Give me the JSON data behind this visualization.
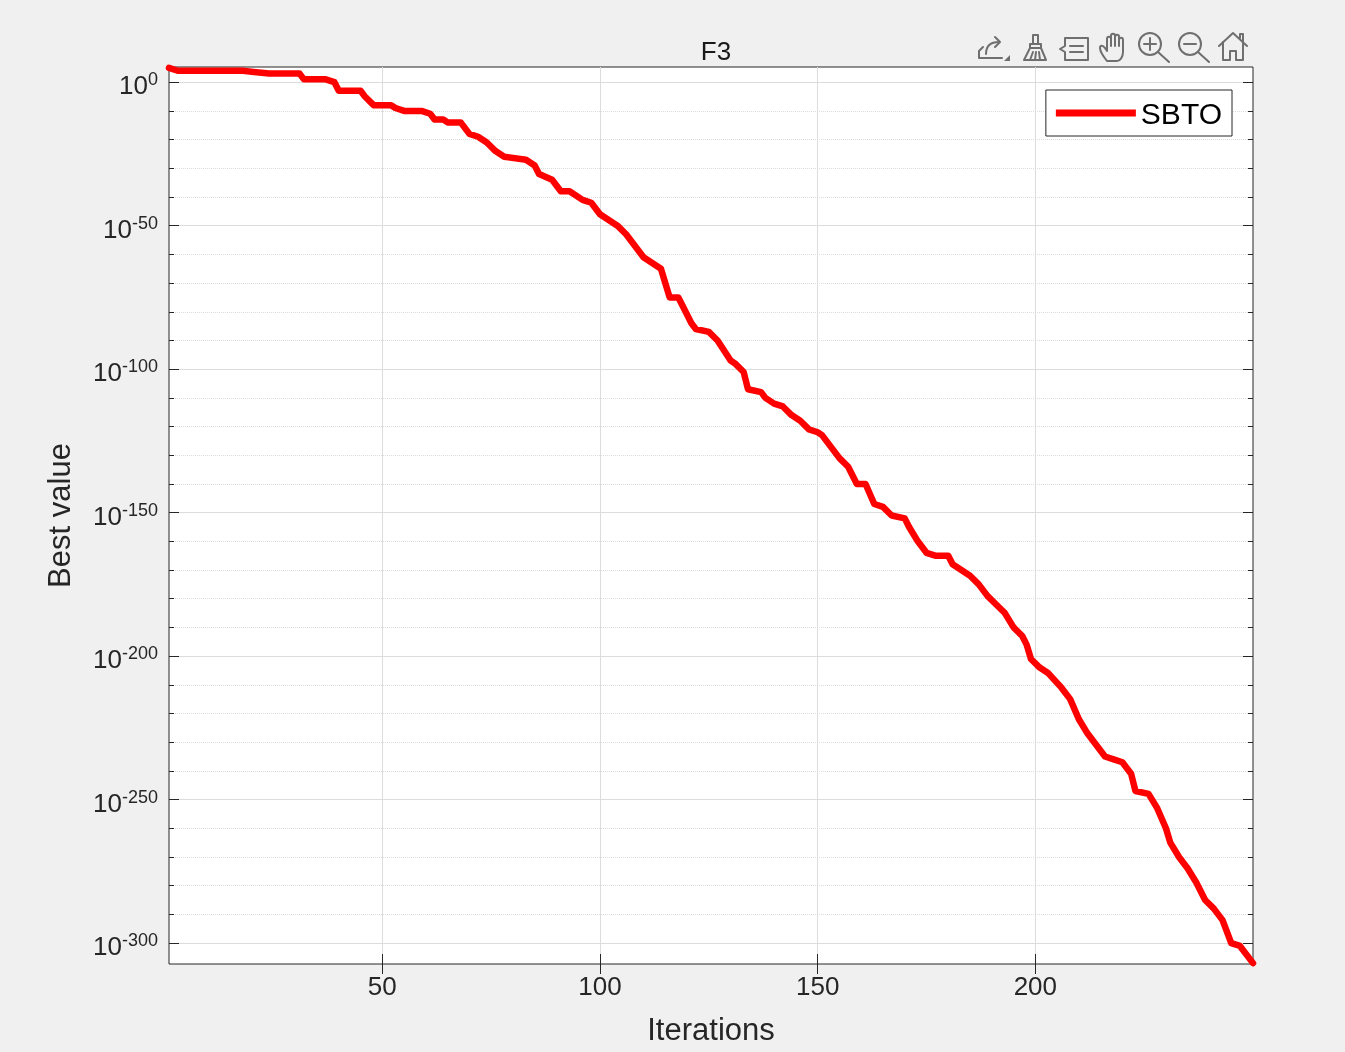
{
  "chart_data": {
    "type": "line",
    "title": "F3",
    "xlabel": "Iterations",
    "ylabel": "Best value",
    "x": [
      1,
      3,
      18,
      24,
      31,
      32,
      37,
      39,
      40,
      45,
      46,
      48,
      52,
      53,
      55,
      59,
      61,
      62,
      64,
      65,
      68,
      70,
      72,
      74,
      76,
      78,
      83,
      85,
      86,
      89,
      91,
      93,
      96,
      98,
      100,
      102,
      104,
      106,
      108,
      110,
      112,
      114,
      116,
      118,
      119,
      120,
      121,
      122,
      125,
      127,
      130,
      131,
      133,
      134,
      137,
      138,
      140,
      142,
      144,
      146,
      148,
      150,
      151,
      153,
      155,
      157,
      159,
      161,
      163,
      165,
      167,
      170,
      171,
      173,
      175,
      177,
      180,
      181,
      183,
      185,
      187,
      189,
      191,
      193,
      195,
      197,
      198,
      199,
      201,
      203,
      206,
      208,
      210,
      212,
      214,
      216,
      218,
      220,
      222,
      223,
      226,
      228,
      230,
      231,
      233,
      235,
      237,
      239,
      241,
      243,
      245,
      247,
      250
    ],
    "series": [
      {
        "name": "SBTO",
        "color": "#ff0000",
        "values": [
          100000.0,
          10000.0,
          10000.0,
          1000.0,
          1000.0,
          10.0,
          10.0,
          1.0,
          0.001,
          0.001,
          1e-05,
          1e-08,
          1e-08,
          1e-09,
          1e-10,
          1e-10,
          1e-11,
          1e-13,
          1e-13,
          1e-14,
          1e-14,
          1e-18,
          1e-19,
          1e-21,
          1e-24,
          1e-26,
          1e-27,
          1e-29,
          1e-32,
          1e-34,
          1e-38,
          1e-38,
          1e-41,
          1e-42,
          1e-46,
          1e-48,
          1e-50,
          1e-53,
          1e-57,
          1e-61,
          1e-63,
          1e-65,
          1e-75,
          1e-75,
          1e-78,
          1e-81,
          1e-84,
          1e-86,
          1e-87,
          1e-90,
          1e-97,
          1e-98,
          1e-101,
          1e-107,
          1e-108,
          1e-110,
          1e-112,
          1e-113,
          1e-116,
          1e-118,
          1e-121,
          1e-122,
          1e-123,
          1e-127,
          1e-131,
          1e-134,
          1e-140,
          1e-140,
          1e-147,
          1e-148,
          1e-151,
          1e-152,
          1e-155,
          1e-160,
          1e-164,
          1e-165,
          1e-165,
          1e-168,
          1e-170,
          1e-172,
          1e-175,
          1e-179,
          1e-182,
          1e-185,
          1e-190,
          1e-193,
          1e-196,
          1e-201,
          1e-204,
          1e-206,
          1e-211,
          1e-215,
          1e-222,
          1e-227,
          1e-231,
          1e-235,
          1e-236,
          1e-237,
          1e-241,
          1e-247,
          1e-248,
          1e-253,
          1e-260,
          1e-265,
          1e-270,
          1e-274,
          1e-279,
          1e-285,
          1e-288,
          1e-292,
          1e-300,
          1e-301,
          1e-307
        ]
      }
    ],
    "xlim": [
      1,
      250
    ],
    "xticks": [
      50,
      100,
      150,
      200
    ],
    "ylim": [
      5e-308,
      200000.0
    ],
    "yticks": [
      {
        "value": 1e-300,
        "label": "10$^{-300}$"
      },
      {
        "value": 1e-290,
        "label": null
      },
      {
        "value": 1e-280,
        "label": null
      },
      {
        "value": 1e-270,
        "label": null
      },
      {
        "value": 1e-260,
        "label": null
      },
      {
        "value": 1e-250,
        "label": "10$^{-250}$"
      },
      {
        "value": 1e-240,
        "label": null
      },
      {
        "value": 1e-230,
        "label": null
      },
      {
        "value": 1e-220,
        "label": null
      },
      {
        "value": 1e-210,
        "label": null
      },
      {
        "value": 1e-200,
        "label": "10$^{-200}$"
      },
      {
        "value": 1e-190,
        "label": null
      },
      {
        "value": 1e-180,
        "label": null
      },
      {
        "value": 1e-170,
        "label": null
      },
      {
        "value": 1e-160,
        "label": null
      },
      {
        "value": 1e-150,
        "label": "10$^{-150}$"
      },
      {
        "value": 1e-140,
        "label": null
      },
      {
        "value": 1e-130,
        "label": null
      },
      {
        "value": 1e-120,
        "label": null
      },
      {
        "value": 1e-110,
        "label": null
      },
      {
        "value": 1e-100,
        "label": "10$^{-100}$"
      },
      {
        "value": 1e-90,
        "label": null
      },
      {
        "value": 1e-80,
        "label": null
      },
      {
        "value": 1e-70,
        "label": null
      },
      {
        "value": 1e-60,
        "label": null
      },
      {
        "value": 1e-50,
        "label": "10$^{-50}$"
      },
      {
        "value": 1e-40,
        "label": null
      },
      {
        "value": 1e-30,
        "label": null
      },
      {
        "value": 1e-20,
        "label": null
      },
      {
        "value": 1e-10,
        "label": null
      },
      {
        "value": 1,
        "label": "10$^{0}$"
      }
    ],
    "log": true,
    "grid": true,
    "legend": "top right",
    "marker": "none",
    "line_style": "solid"
  }
}
